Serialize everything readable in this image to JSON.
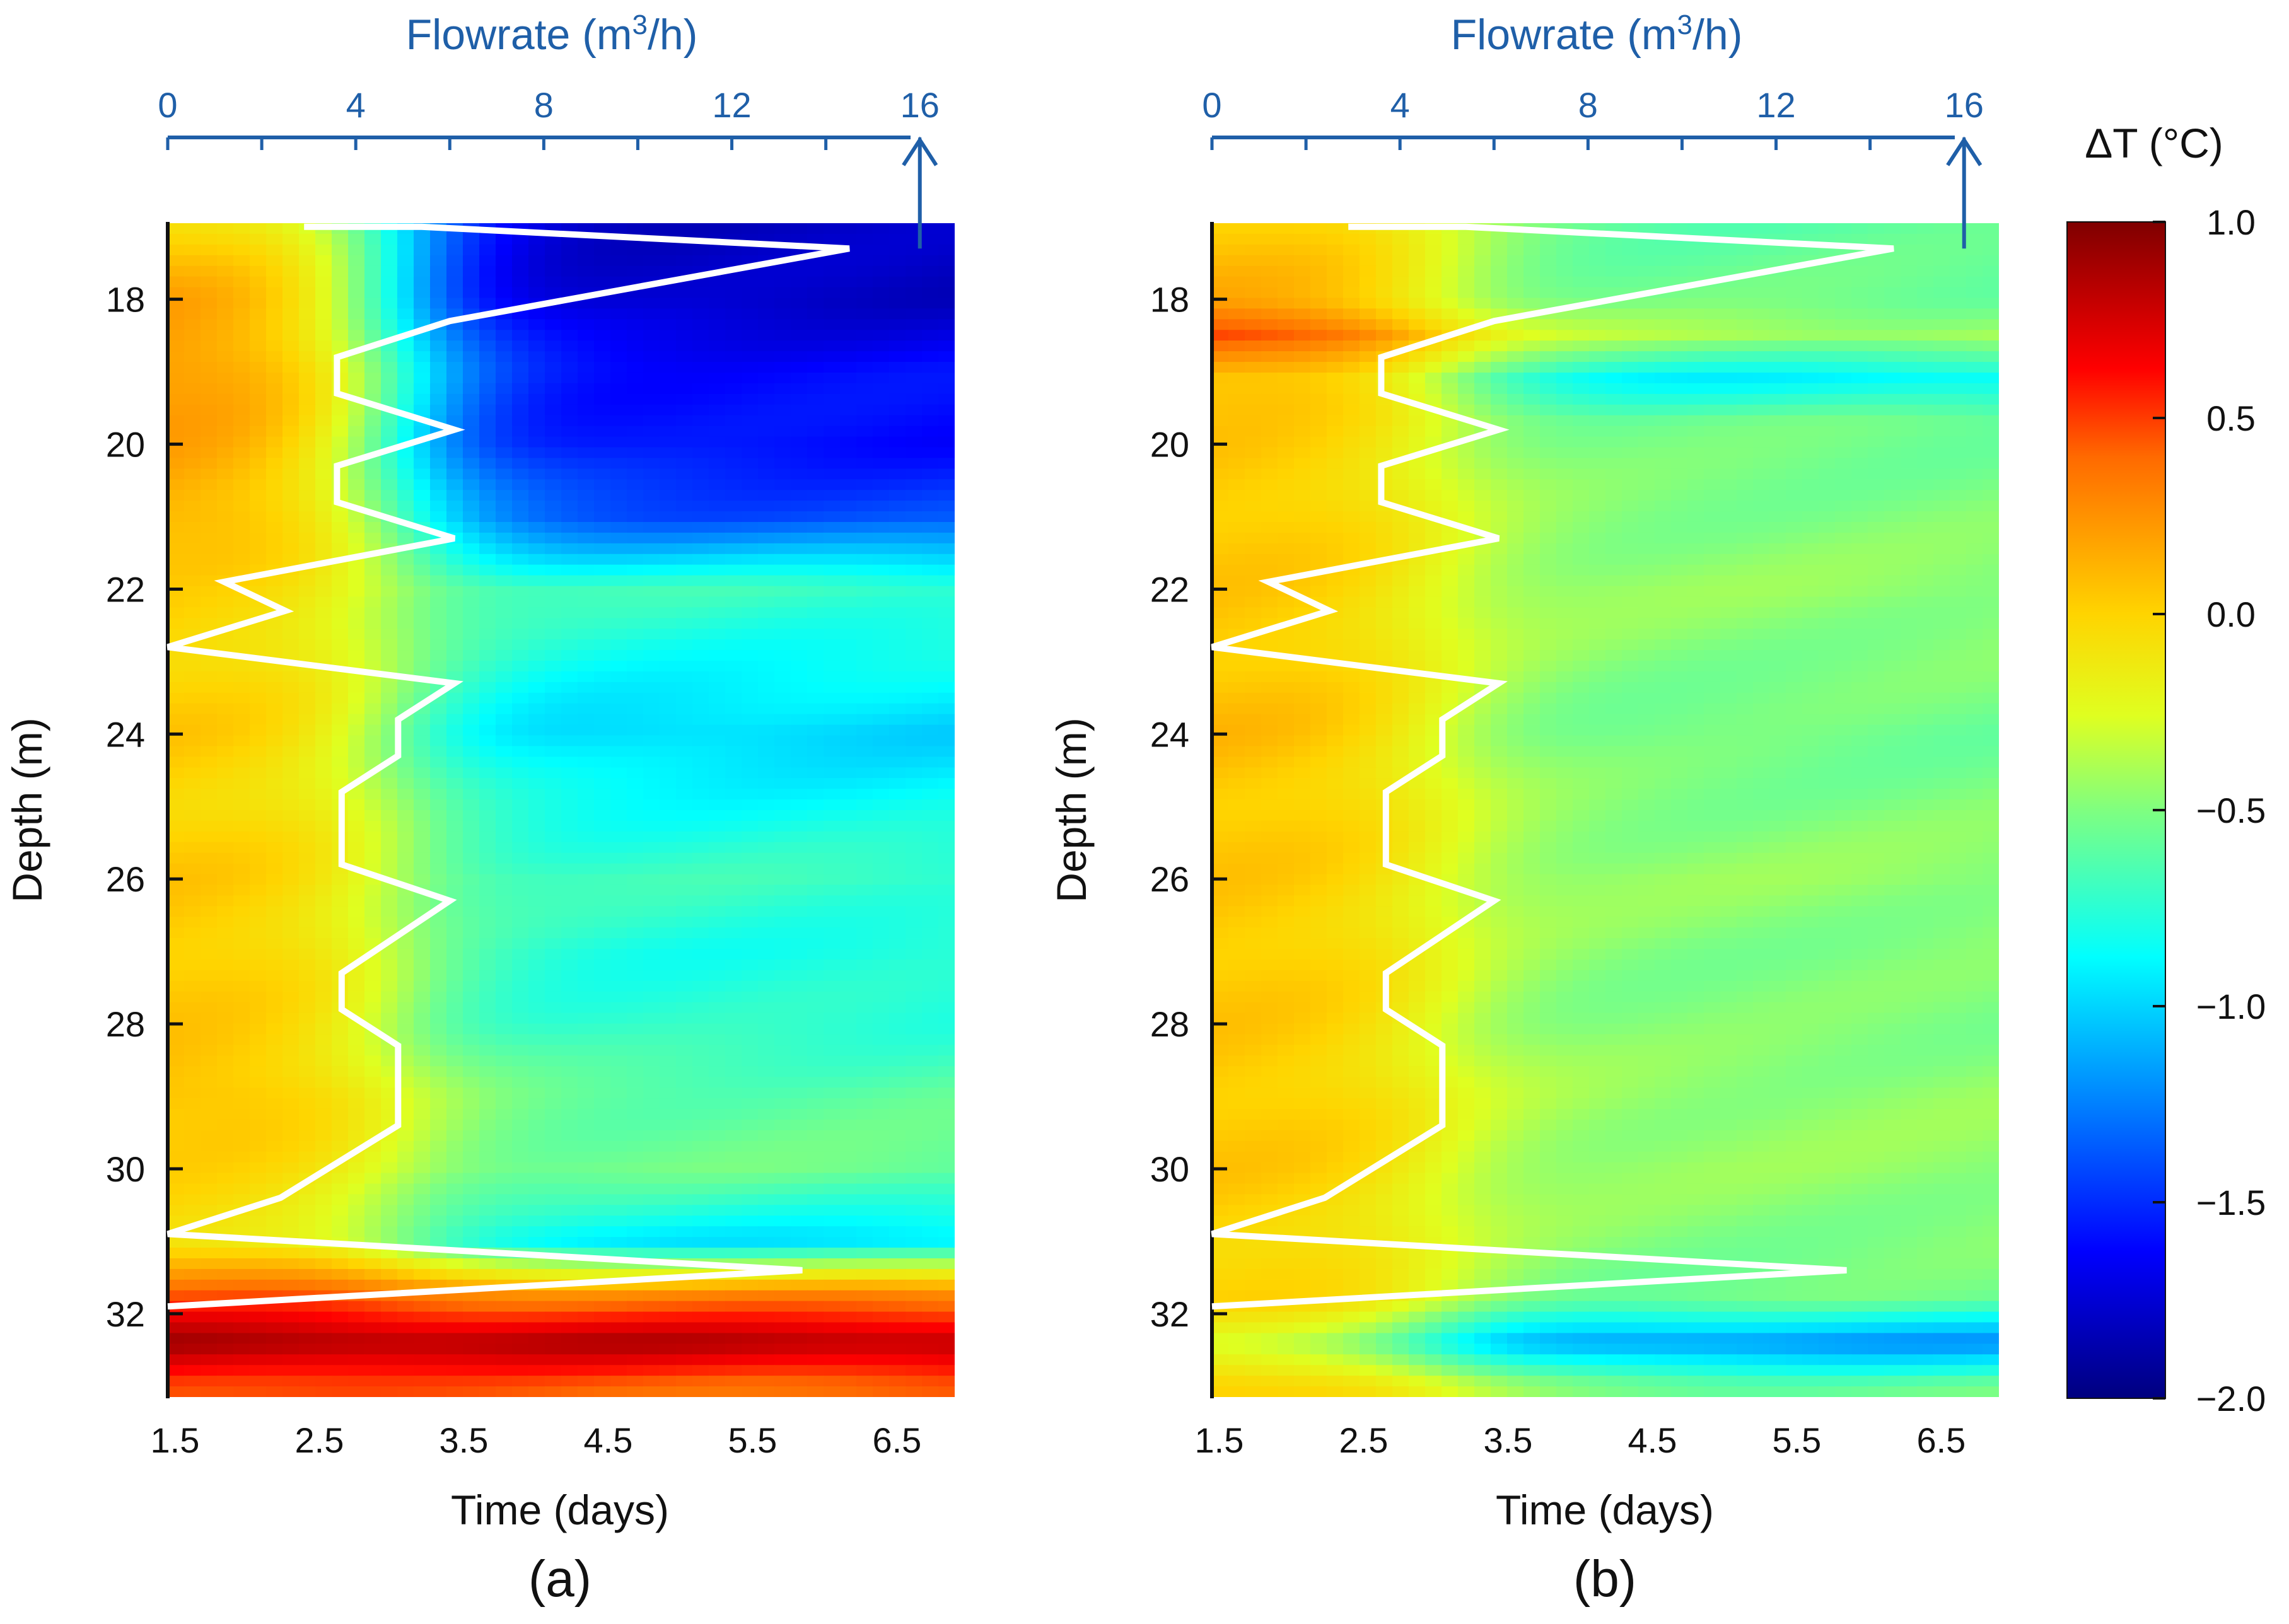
{
  "figure": {
    "panels": [
      "(a)",
      "(b)"
    ],
    "colorbar": {
      "title": "ΔT (°C)",
      "ticks": [
        "1.0",
        "0.5",
        "0.0",
        "−0.5",
        "−1.0",
        "−1.5",
        "−2.0"
      ],
      "range": [
        -2.0,
        1.0
      ]
    }
  },
  "chart_data": [
    {
      "type": "heatmap",
      "panel_label": "(a)",
      "xlabel": "Time (days)",
      "ylabel": "Depth (m)",
      "x_ticks": [
        "1.5",
        "2.5",
        "3.5",
        "4.5",
        "5.5",
        "6.5"
      ],
      "y_ticks": [
        "18",
        "20",
        "22",
        "24",
        "26",
        "28",
        "30",
        "32"
      ],
      "xlim": [
        1.45,
        6.9
      ],
      "ylim_depth": [
        16.95,
        33.15
      ],
      "top_axis": {
        "title": "Flowrate (m3/h)",
        "title_main": "Flowrate (m",
        "title_sup": "3",
        "title_end": "/h)",
        "ticks": [
          "0",
          "4",
          "8",
          "12",
          "16"
        ],
        "range": [
          0,
          16.5
        ],
        "arrow_at": 16
      },
      "heat_rows": [
        {
          "depth": 17.0,
          "cold": -1.8,
          "warm": 0.0
        },
        {
          "depth": 18.0,
          "cold": -1.8,
          "warm": 0.2
        },
        {
          "depth": 19.0,
          "cold": -1.6,
          "warm": 0.25
        },
        {
          "depth": 20.0,
          "cold": -1.6,
          "warm": 0.2
        },
        {
          "depth": 21.0,
          "cold": -1.4,
          "warm": 0.15
        },
        {
          "depth": 22.0,
          "cold": -0.7,
          "warm": 0.0
        },
        {
          "depth": 23.0,
          "cold": -0.85,
          "warm": 0.0
        },
        {
          "depth": 24.0,
          "cold": -1.0,
          "warm": 0.05
        },
        {
          "depth": 25.0,
          "cold": -0.85,
          "warm": 0.0
        },
        {
          "depth": 26.0,
          "cold": -0.7,
          "warm": 0.05
        },
        {
          "depth": 27.0,
          "cold": -0.8,
          "warm": 0.05
        },
        {
          "depth": 28.0,
          "cold": -0.75,
          "warm": 0.05
        },
        {
          "depth": 29.0,
          "cold": -0.6,
          "warm": 0.1
        },
        {
          "depth": 30.0,
          "cold": -0.55,
          "warm": 0.0
        },
        {
          "depth": 31.0,
          "cold": -0.95,
          "warm": -0.05
        },
        {
          "depth": 31.7,
          "cold": 0.25,
          "warm": 0.4
        },
        {
          "depth": 32.4,
          "cold": 0.85,
          "warm": 0.9
        },
        {
          "depth": 33.0,
          "cold": 0.4,
          "warm": 0.5
        }
      ],
      "flow_profile": [
        {
          "depth": 17.0,
          "flow": 2.9
        },
        {
          "depth": 17.0,
          "flow": 5.4
        },
        {
          "depth": 17.3,
          "flow": 14.5
        },
        {
          "depth": 18.3,
          "flow": 6.0
        },
        {
          "depth": 18.8,
          "flow": 3.6
        },
        {
          "depth": 19.3,
          "flow": 3.6
        },
        {
          "depth": 19.8,
          "flow": 6.1
        },
        {
          "depth": 20.3,
          "flow": 3.6
        },
        {
          "depth": 20.8,
          "flow": 3.6
        },
        {
          "depth": 21.3,
          "flow": 6.1
        },
        {
          "depth": 21.9,
          "flow": 1.2
        },
        {
          "depth": 22.3,
          "flow": 2.5
        },
        {
          "depth": 22.8,
          "flow": 0.0
        },
        {
          "depth": 23.3,
          "flow": 6.1
        },
        {
          "depth": 23.8,
          "flow": 4.9
        },
        {
          "depth": 24.3,
          "flow": 4.9
        },
        {
          "depth": 24.8,
          "flow": 3.7
        },
        {
          "depth": 25.8,
          "flow": 3.7
        },
        {
          "depth": 26.3,
          "flow": 6.0
        },
        {
          "depth": 27.3,
          "flow": 3.7
        },
        {
          "depth": 27.8,
          "flow": 3.7
        },
        {
          "depth": 28.3,
          "flow": 4.9
        },
        {
          "depth": 29.4,
          "flow": 4.9
        },
        {
          "depth": 30.4,
          "flow": 2.4
        },
        {
          "depth": 30.9,
          "flow": 0.0
        },
        {
          "depth": 31.4,
          "flow": 13.5
        },
        {
          "depth": 31.9,
          "flow": 0.0
        }
      ]
    },
    {
      "type": "heatmap",
      "panel_label": "(b)",
      "xlabel": "Time (days)",
      "ylabel": "Depth (m)",
      "x_ticks": [
        "1.5",
        "2.5",
        "3.5",
        "4.5",
        "5.5",
        "6.5"
      ],
      "y_ticks": [
        "18",
        "20",
        "22",
        "24",
        "26",
        "28",
        "30",
        "32"
      ],
      "xlim": [
        1.45,
        6.9
      ],
      "ylim_depth": [
        16.95,
        33.15
      ],
      "top_axis": {
        "title": "Flowrate (m3/h)",
        "title_main": "Flowrate (m",
        "title_sup": "3",
        "title_end": "/h)",
        "ticks": [
          "0",
          "4",
          "8",
          "12",
          "16"
        ],
        "range": [
          0,
          16.5
        ],
        "arrow_at": 16
      },
      "heat_rows": [
        {
          "depth": 17.0,
          "cold": -0.6,
          "warm": 0.05
        },
        {
          "depth": 18.0,
          "cold": -0.55,
          "warm": 0.15
        },
        {
          "depth": 18.5,
          "cold": -0.4,
          "warm": 0.5
        },
        {
          "depth": 19.1,
          "cold": -0.9,
          "warm": 0.1
        },
        {
          "depth": 19.7,
          "cold": -0.55,
          "warm": 0.05
        },
        {
          "depth": 21.0,
          "cold": -0.5,
          "warm": 0.05
        },
        {
          "depth": 22.0,
          "cold": -0.45,
          "warm": 0.05
        },
        {
          "depth": 23.0,
          "cold": -0.5,
          "warm": 0.05
        },
        {
          "depth": 24.0,
          "cold": -0.55,
          "warm": 0.1
        },
        {
          "depth": 25.0,
          "cold": -0.5,
          "warm": 0.05
        },
        {
          "depth": 26.0,
          "cold": -0.45,
          "warm": 0.05
        },
        {
          "depth": 27.0,
          "cold": -0.5,
          "warm": 0.05
        },
        {
          "depth": 28.0,
          "cold": -0.5,
          "warm": 0.05
        },
        {
          "depth": 29.0,
          "cold": -0.45,
          "warm": 0.05
        },
        {
          "depth": 30.0,
          "cold": -0.45,
          "warm": 0.05
        },
        {
          "depth": 31.0,
          "cold": -0.5,
          "warm": 0.0
        },
        {
          "depth": 31.8,
          "cold": -0.55,
          "warm": 0.0
        },
        {
          "depth": 32.4,
          "cold": -1.2,
          "warm": -0.3
        },
        {
          "depth": 33.0,
          "cold": -0.55,
          "warm": 0.05
        }
      ],
      "flow_profile": [
        {
          "depth": 17.0,
          "flow": 2.9
        },
        {
          "depth": 17.0,
          "flow": 5.4
        },
        {
          "depth": 17.3,
          "flow": 14.5
        },
        {
          "depth": 18.3,
          "flow": 6.0
        },
        {
          "depth": 18.8,
          "flow": 3.6
        },
        {
          "depth": 19.3,
          "flow": 3.6
        },
        {
          "depth": 19.8,
          "flow": 6.1
        },
        {
          "depth": 20.3,
          "flow": 3.6
        },
        {
          "depth": 20.8,
          "flow": 3.6
        },
        {
          "depth": 21.3,
          "flow": 6.1
        },
        {
          "depth": 21.9,
          "flow": 1.2
        },
        {
          "depth": 22.3,
          "flow": 2.5
        },
        {
          "depth": 22.8,
          "flow": 0.0
        },
        {
          "depth": 23.3,
          "flow": 6.1
        },
        {
          "depth": 23.8,
          "flow": 4.9
        },
        {
          "depth": 24.3,
          "flow": 4.9
        },
        {
          "depth": 24.8,
          "flow": 3.7
        },
        {
          "depth": 25.8,
          "flow": 3.7
        },
        {
          "depth": 26.3,
          "flow": 6.0
        },
        {
          "depth": 27.3,
          "flow": 3.7
        },
        {
          "depth": 27.8,
          "flow": 3.7
        },
        {
          "depth": 28.3,
          "flow": 4.9
        },
        {
          "depth": 29.4,
          "flow": 4.9
        },
        {
          "depth": 30.4,
          "flow": 2.4
        },
        {
          "depth": 30.9,
          "flow": 0.0
        },
        {
          "depth": 31.4,
          "flow": 13.5
        },
        {
          "depth": 31.9,
          "flow": 0.0
        }
      ]
    }
  ]
}
